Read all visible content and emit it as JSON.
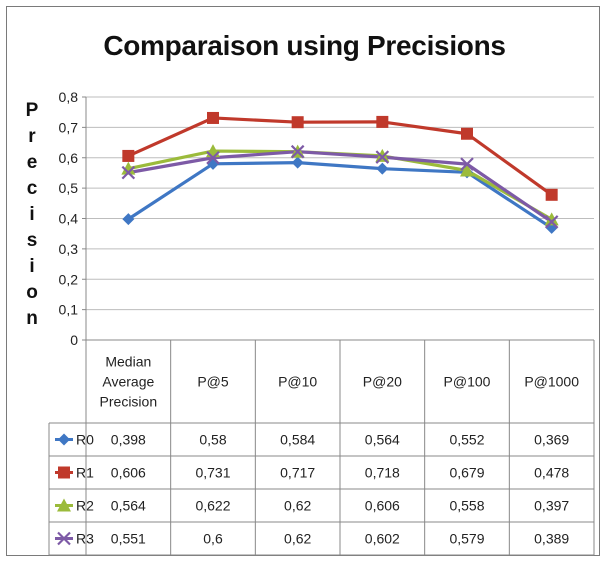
{
  "chart_data": {
    "type": "line",
    "title": "Comparaison using Precisions",
    "ylabel": "Precision",
    "ylim": [
      0,
      0.8
    ],
    "yticks": [
      "0",
      "0,1",
      "0,2",
      "0,3",
      "0,4",
      "0,5",
      "0,6",
      "0,7",
      "0,8"
    ],
    "grid": true,
    "legend": "data-table",
    "categories": [
      "Median Average Precision",
      "P@5",
      "P@10",
      "P@20",
      "P@100",
      "P@1000"
    ],
    "series": [
      {
        "name": "R0",
        "color": "#3f77c4",
        "marker": "diamond",
        "values": [
          0.398,
          0.58,
          0.584,
          0.564,
          0.552,
          0.369
        ],
        "labels": [
          "0,398",
          "0,58",
          "0,584",
          "0,564",
          "0,552",
          "0,369"
        ]
      },
      {
        "name": "R1",
        "color": "#c0392b",
        "marker": "square",
        "values": [
          0.606,
          0.731,
          0.717,
          0.718,
          0.679,
          0.478
        ],
        "labels": [
          "0,606",
          "0,731",
          "0,717",
          "0,718",
          "0,679",
          "0,478"
        ]
      },
      {
        "name": "R2",
        "color": "#9bbb3b",
        "marker": "triangle",
        "values": [
          0.564,
          0.622,
          0.62,
          0.606,
          0.558,
          0.397
        ],
        "labels": [
          "0,564",
          "0,622",
          "0,62",
          "0,606",
          "0,558",
          "0,397"
        ]
      },
      {
        "name": "R3",
        "color": "#7d5aa6",
        "marker": "x",
        "values": [
          0.551,
          0.6,
          0.62,
          0.602,
          0.579,
          0.389
        ],
        "labels": [
          "0,551",
          "0,6",
          "0,62",
          "0,602",
          "0,579",
          "0,389"
        ]
      }
    ]
  }
}
